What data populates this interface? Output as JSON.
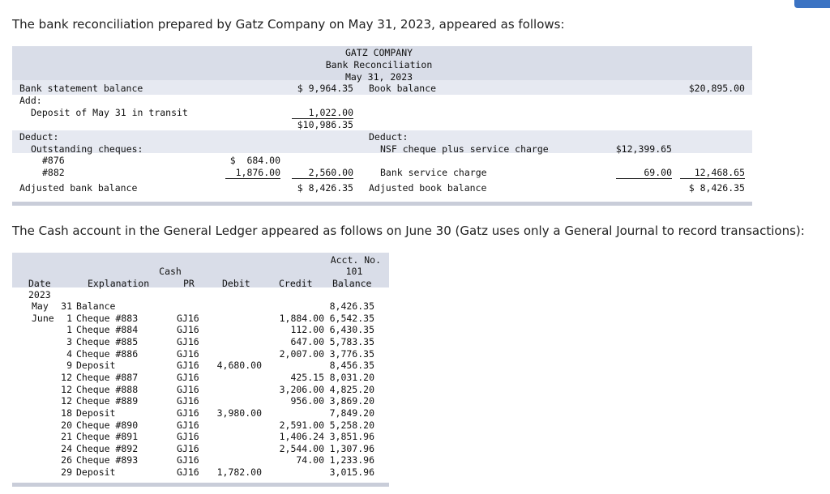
{
  "intro": "The bank reconciliation prepared by Gatz Company on May 31, 2023, appeared as follows:",
  "recon": {
    "company": "GATZ COMPANY",
    "title": "Bank Reconciliation",
    "date": "May 31, 2023",
    "bank_balance_label": "Bank statement balance",
    "bank_balance": "$ 9,964.35",
    "book_balance_label": "Book balance",
    "book_balance": "$20,895.00",
    "add_label": "Add:",
    "deposit_label": "Deposit of May 31 in transit",
    "deposit_amount": "1,022.00",
    "bank_subtotal": "$10,986.35",
    "deduct_left": "Deduct:",
    "outstanding_label": "Outstanding cheques:",
    "cheque1_label": "#876",
    "cheque1_amount": "$  684.00",
    "cheque2_label": "#882",
    "cheque2_amount": "1,876.00",
    "cheques_total": "2,560.00",
    "adj_bank_label": "Adjusted bank balance",
    "adj_bank": "$ 8,426.35",
    "deduct_right": "Deduct:",
    "nsf_label": "NSF cheque plus service charge",
    "nsf_amount": "$12,399.65",
    "service_label": "Bank service charge",
    "service_amount": "69.00",
    "book_deduct_total": "12,468.65",
    "adj_book_label": "Adjusted book balance",
    "adj_book": "$ 8,426.35"
  },
  "intro2": "The Cash account in the General Ledger appeared as follows on June 30 (Gatz uses only a General Journal to record transactions):",
  "ledger": {
    "account_name": "Cash",
    "acct_no_label": "Acct. No.",
    "acct_no": "101",
    "headers": {
      "date": "Date",
      "explanation": "Explanation",
      "pr": "PR",
      "debit": "Debit",
      "credit": "Credit",
      "balance": "Balance"
    },
    "year": "2023",
    "rows": [
      {
        "month": "May",
        "day": "31",
        "explanation": "Balance",
        "pr": "",
        "debit": "",
        "credit": "",
        "balance": "8,426.35"
      },
      {
        "month": "June",
        "day": "1",
        "explanation": "Cheque #883",
        "pr": "GJ16",
        "debit": "",
        "credit": "1,884.00",
        "balance": "6,542.35"
      },
      {
        "month": "",
        "day": "1",
        "explanation": "Cheque #884",
        "pr": "GJ16",
        "debit": "",
        "credit": "112.00",
        "balance": "6,430.35"
      },
      {
        "month": "",
        "day": "3",
        "explanation": "Cheque #885",
        "pr": "GJ16",
        "debit": "",
        "credit": "647.00",
        "balance": "5,783.35"
      },
      {
        "month": "",
        "day": "4",
        "explanation": "Cheque #886",
        "pr": "GJ16",
        "debit": "",
        "credit": "2,007.00",
        "balance": "3,776.35"
      },
      {
        "month": "",
        "day": "9",
        "explanation": "Deposit",
        "pr": "GJ16",
        "debit": "4,680.00",
        "credit": "",
        "balance": "8,456.35"
      },
      {
        "month": "",
        "day": "12",
        "explanation": "Cheque #887",
        "pr": "GJ16",
        "debit": "",
        "credit": "425.15",
        "balance": "8,031.20"
      },
      {
        "month": "",
        "day": "12",
        "explanation": "Cheque #888",
        "pr": "GJ16",
        "debit": "",
        "credit": "3,206.00",
        "balance": "4,825.20"
      },
      {
        "month": "",
        "day": "12",
        "explanation": "Cheque #889",
        "pr": "GJ16",
        "debit": "",
        "credit": "956.00",
        "balance": "3,869.20"
      },
      {
        "month": "",
        "day": "18",
        "explanation": "Deposit",
        "pr": "GJ16",
        "debit": "3,980.00",
        "credit": "",
        "balance": "7,849.20"
      },
      {
        "month": "",
        "day": "20",
        "explanation": "Cheque #890",
        "pr": "GJ16",
        "debit": "",
        "credit": "2,591.00",
        "balance": "5,258.20"
      },
      {
        "month": "",
        "day": "21",
        "explanation": "Cheque #891",
        "pr": "GJ16",
        "debit": "",
        "credit": "1,406.24",
        "balance": "3,851.96"
      },
      {
        "month": "",
        "day": "24",
        "explanation": "Cheque #892",
        "pr": "GJ16",
        "debit": "",
        "credit": "2,544.00",
        "balance": "1,307.96"
      },
      {
        "month": "",
        "day": "26",
        "explanation": "Cheque #893",
        "pr": "GJ16",
        "debit": "",
        "credit": "74.00",
        "balance": "1,233.96"
      },
      {
        "month": "",
        "day": "29",
        "explanation": "Deposit",
        "pr": "GJ16",
        "debit": "1,782.00",
        "credit": "",
        "balance": "3,015.96"
      }
    ]
  }
}
